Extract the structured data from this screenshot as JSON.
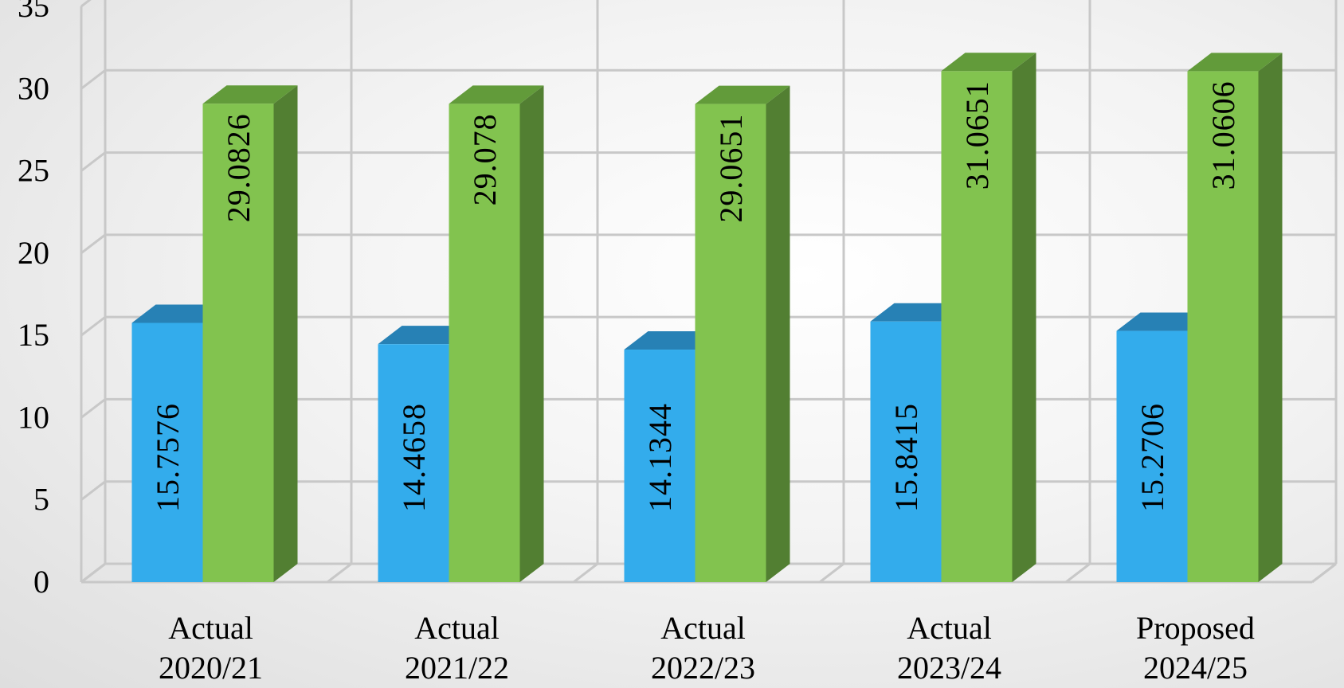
{
  "chart_data": {
    "type": "bar",
    "style": "3d-clustered-column",
    "title": "",
    "xlabel": "",
    "ylabel": "",
    "categories": [
      [
        "Actual",
        "2020/21"
      ],
      [
        "Actual",
        "2021/22"
      ],
      [
        "Actual",
        "2022/23"
      ],
      [
        "Actual",
        "2023/24"
      ],
      [
        "Proposed",
        "2024/25"
      ]
    ],
    "series": [
      {
        "values": [
          15.7576,
          14.4658,
          14.1344,
          15.8415,
          15.2706
        ],
        "labels": [
          "15.7576",
          "14.4658",
          "14.1344",
          "15.8415",
          "15.2706"
        ],
        "color": "#33acec",
        "top_color": "#2781b5",
        "side_color": "#1f6f9e"
      },
      {
        "values": [
          29.0826,
          29.078,
          29.0651,
          31.0651,
          31.0606
        ],
        "labels": [
          "29.0826",
          "29.078",
          "29.0651",
          "31.0651",
          "31.0606"
        ],
        "color": "#82c34f",
        "top_color": "#629b3a",
        "side_color": "#527f32"
      }
    ],
    "ylim": [
      0,
      35
    ],
    "yticks": [
      "0",
      "5",
      "10",
      "15",
      "20",
      "25",
      "30",
      "35"
    ],
    "grid": true,
    "legend": "none"
  }
}
